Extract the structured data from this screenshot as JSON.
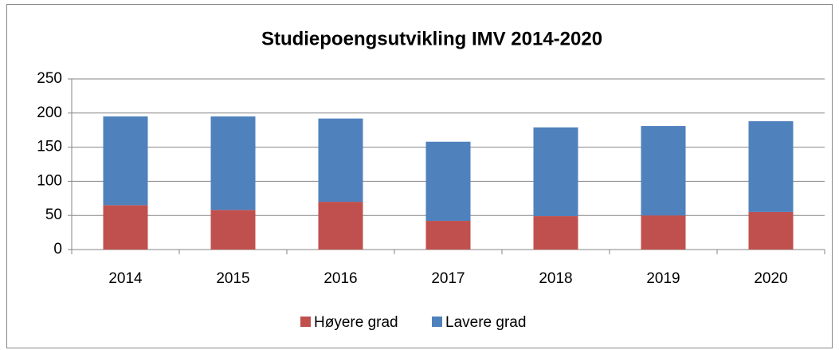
{
  "chart_data": {
    "type": "stacked_bar",
    "title": "Studiepoengsutvikling IMV 2014-2020",
    "categories": [
      "2014",
      "2015",
      "2016",
      "2017",
      "2018",
      "2019",
      "2020"
    ],
    "series": [
      {
        "name": "Høyere grad",
        "color": "#c0504d",
        "values": [
          65,
          58,
          70,
          42,
          49,
          50,
          55
        ]
      },
      {
        "name": "Lavere grad",
        "color": "#4f81bd",
        "values": [
          130,
          137,
          122,
          116,
          130,
          131,
          133
        ]
      }
    ],
    "ylim": [
      0,
      250
    ],
    "yticks": [
      0,
      50,
      100,
      150,
      200,
      250
    ],
    "grid": true,
    "legend": "bottom"
  }
}
